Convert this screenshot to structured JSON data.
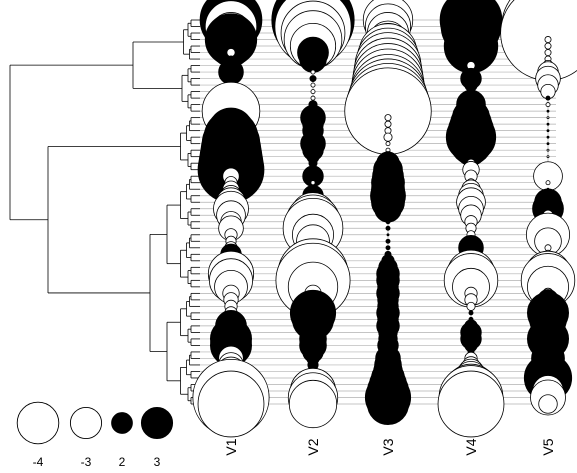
{
  "chart_data": {
    "type": "bubble-matrix-with-dendrogram",
    "title": "",
    "columns": [
      "V1",
      "V2",
      "V3",
      "V4",
      "V5"
    ],
    "n_rows": 60,
    "encoding": {
      "positive_fill": "#000000",
      "negative_fill": "#ffffff",
      "outline": "#000000",
      "size": "absolute value"
    },
    "legend": {
      "position": "bottom-left",
      "items": [
        {
          "label": "-4",
          "value": -4
        },
        {
          "label": "-3",
          "value": -3
        },
        {
          "label": "2",
          "value": 2
        },
        {
          "label": "3",
          "value": 3
        }
      ]
    },
    "values": {
      "V1": [
        3.0,
        -2.5,
        -2.0,
        2.5,
        2.0,
        -0.4,
        0.3,
        -0.2,
        1.2,
        0.2,
        0.3,
        -0.4,
        -0.3,
        -0.2,
        -2.8,
        0.5,
        0.5,
        2.2,
        2.6,
        2.8,
        2.9,
        3.0,
        3.1,
        3.2,
        -0.8,
        -0.6,
        -0.8,
        -1.0,
        -1.4,
        -1.7,
        -1.4,
        -1.0,
        -1.2,
        -0.6,
        -0.5,
        -0.6,
        1.0,
        0.6,
        -1.3,
        -2.2,
        -2.1,
        -1.6,
        -0.8,
        -0.7,
        -0.6,
        -0.6,
        -0.7,
        1.5,
        1.5,
        2.0,
        2.0,
        1.0,
        -1.2,
        -1.2,
        -1.4,
        -1.6,
        -1.9,
        -2.6,
        -3.7,
        -3.2
      ],
      "V2": [
        4.0,
        -3.7,
        -3.1,
        -2.8,
        -2.2,
        1.5,
        1.3,
        0.2,
        -0.2,
        0.3,
        -0.2,
        -0.2,
        -0.2,
        0.4,
        -0.3,
        1.2,
        1.0,
        1.0,
        0.6,
        1.2,
        1.0,
        0.6,
        0.4,
        -0.2,
        1.0,
        -0.2,
        -0.2,
        1.0,
        -0.2,
        0.4,
        -2.2,
        -2.6,
        -2.9,
        -2.0,
        -1.6,
        -0.6,
        0.4,
        0.2,
        -1.6,
        -3.4,
        -3.6,
        -2.4,
        -0.8,
        -0.5,
        -1.3,
        2.2,
        2.0,
        -0.5,
        1.3,
        1.3,
        1.3,
        1.0,
        0.6,
        0.5,
        0.4,
        0.3,
        -1.4,
        -2.2,
        -2.4,
        -2.3
      ],
      "V3": [
        -2.4,
        -2.2,
        -2.0,
        -1.8,
        -2.2,
        -2.8,
        -3.0,
        -3.2,
        -3.3,
        -3.4,
        -3.5,
        -3.6,
        -3.8,
        -4.0,
        -4.2,
        -0.3,
        -0.3,
        -0.3,
        -0.4,
        -0.2,
        -0.2,
        0.5,
        1.1,
        1.4,
        1.5,
        1.6,
        1.6,
        1.7,
        1.6,
        1.3,
        0.3,
        0.2,
        0.2,
        0.1,
        0.2,
        0.2,
        0.3,
        0.6,
        0.9,
        1.1,
        1.1,
        1.0,
        1.1,
        1.0,
        1.0,
        1.1,
        1.0,
        1.1,
        0.9,
        0.9,
        1.0,
        0.9,
        1.2,
        1.3,
        1.4,
        1.6,
        1.8,
        2.0,
        2.2,
        2.0
      ],
      "V4": [
        3.0,
        2.9,
        2.6,
        2.5,
        2.6,
        1.6,
        0.5,
        -0.4,
        -0.3,
        1.0,
        0.6,
        0.4,
        -0.3,
        1.4,
        1.4,
        1.8,
        2.0,
        2.2,
        2.4,
        2.0,
        1.5,
        0.5,
        -0.4,
        -0.8,
        -0.6,
        -0.4,
        -0.9,
        -1.2,
        -1.4,
        -1.2,
        -1.0,
        -0.6,
        -0.5,
        -0.4,
        -0.5,
        1.2,
        0.4,
        -0.5,
        -1.7,
        -2.3,
        -2.6,
        -1.8,
        -0.6,
        -0.6,
        -0.4,
        0.2,
        0.2,
        0.6,
        1.0,
        1.0,
        0.6,
        0.3,
        -0.6,
        -0.8,
        -1.2,
        -1.6,
        -1.9,
        -2.6,
        -3.1,
        -3.2
      ],
      "V5": [
        3.0,
        -4.5,
        -4.6,
        -0.3,
        -0.3,
        -0.3,
        -0.3,
        -0.5,
        -1.0,
        -1.2,
        -1.0,
        -0.7,
        0.2,
        -0.2,
        0.1,
        -0.1,
        0.1,
        0.1,
        0.1,
        0.1,
        -0.1,
        -0.1,
        -0.1,
        -0.1,
        -1.4,
        -0.2,
        0.1,
        0.2,
        1.3,
        1.5,
        -0.5,
        -0.8,
        -1.2,
        -2.1,
        -1.3,
        -0.3,
        -0.4,
        0.1,
        -0.3,
        -2.2,
        -2.6,
        -2.0,
        -0.5,
        1.0,
        1.4,
        2.0,
        1.8,
        1.0,
        1.5,
        2.0,
        1.6,
        1.4,
        1.6,
        1.3,
        1.0,
        2.3,
        1.2,
        -1.5,
        -1.7,
        -0.9
      ]
    }
  }
}
